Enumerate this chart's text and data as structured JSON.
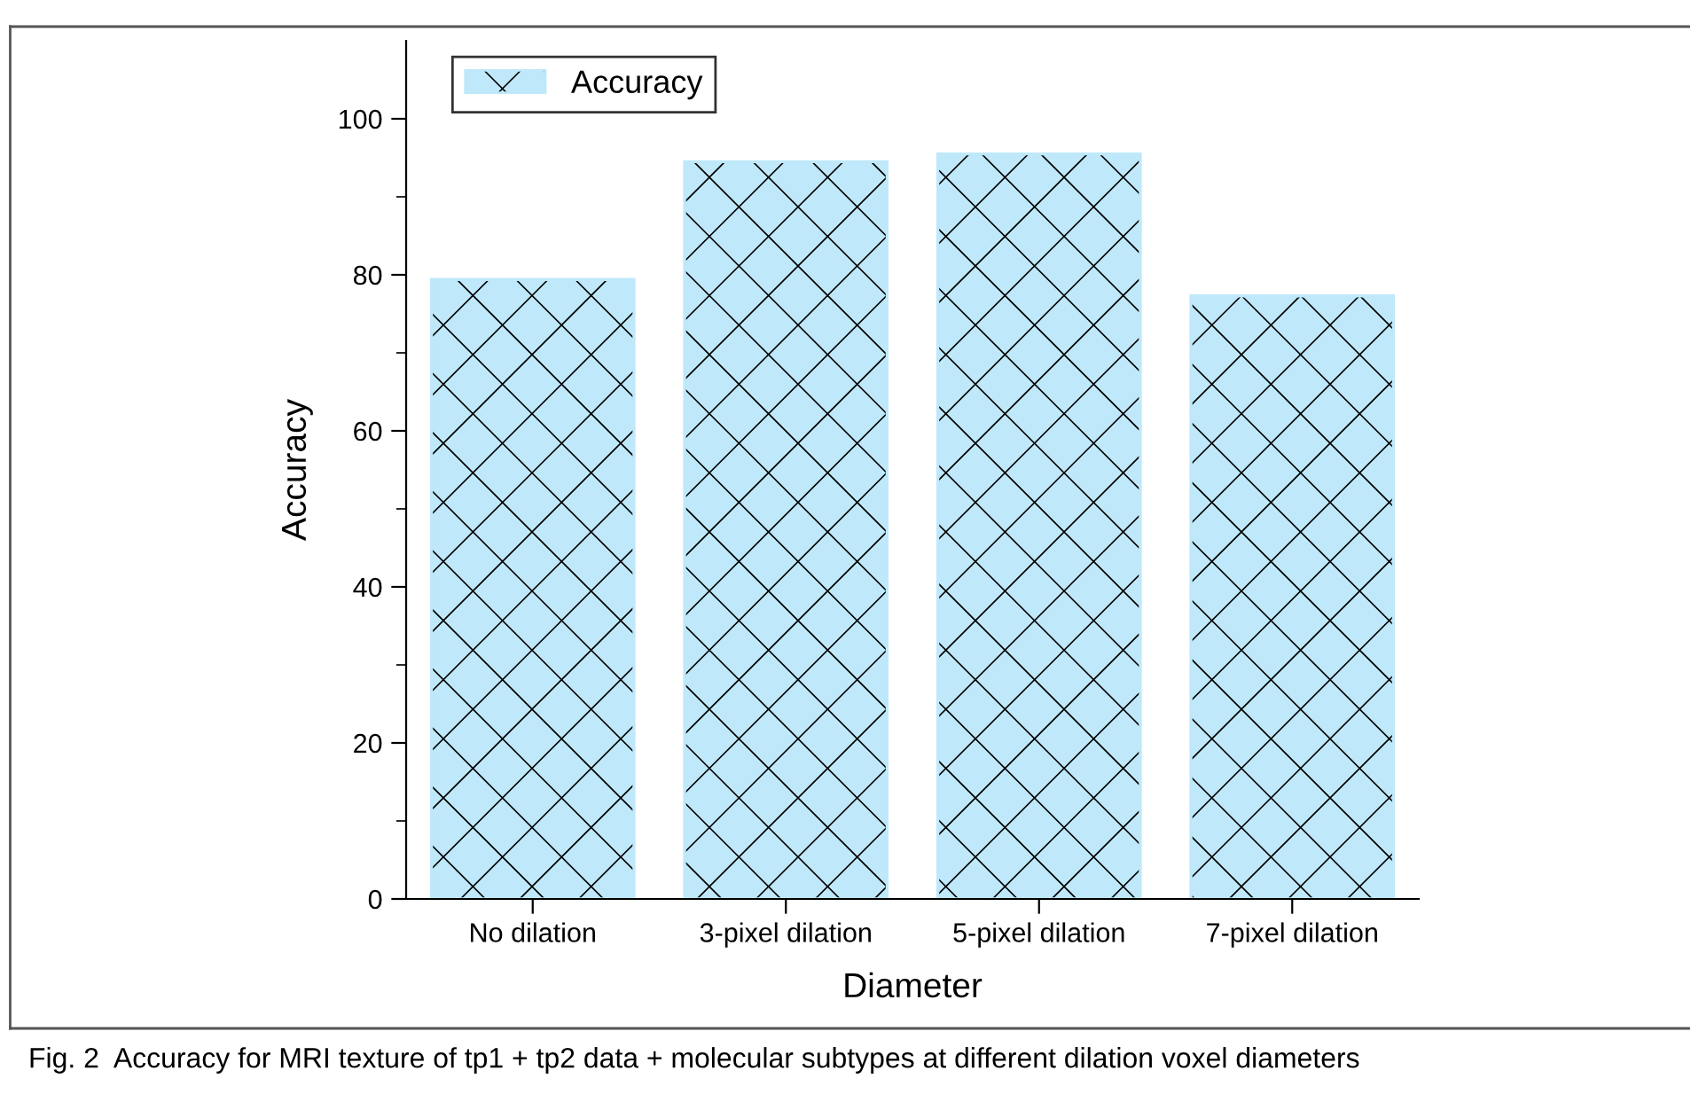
{
  "chart_data": {
    "type": "bar",
    "xlabel": "Diameter",
    "ylabel": "Accuracy",
    "categories": [
      "No dilation",
      "3-pixel dilation",
      "5-pixel dilation",
      "7-pixel dilation"
    ],
    "series": [
      {
        "name": "Accuracy",
        "color": "#bfe9fa",
        "values": [
          79.4,
          94.5,
          95.5,
          77.3
        ]
      }
    ],
    "ylim": [
      0,
      110
    ],
    "yticks": [
      0,
      20,
      40,
      60,
      80,
      100
    ],
    "grid": false,
    "legend": "top left",
    "annotations": [
      "Fig. 2  Accuracy for MRI texture of tp1 + tp2 data + molecular subtypes at different dilation voxel diameters"
    ]
  }
}
